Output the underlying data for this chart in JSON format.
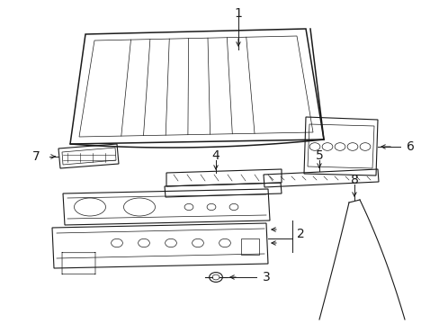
{
  "background_color": "#ffffff",
  "line_color": "#1a1a1a",
  "figsize": [
    4.89,
    3.6
  ],
  "dpi": 100,
  "label_fontsize": 10
}
